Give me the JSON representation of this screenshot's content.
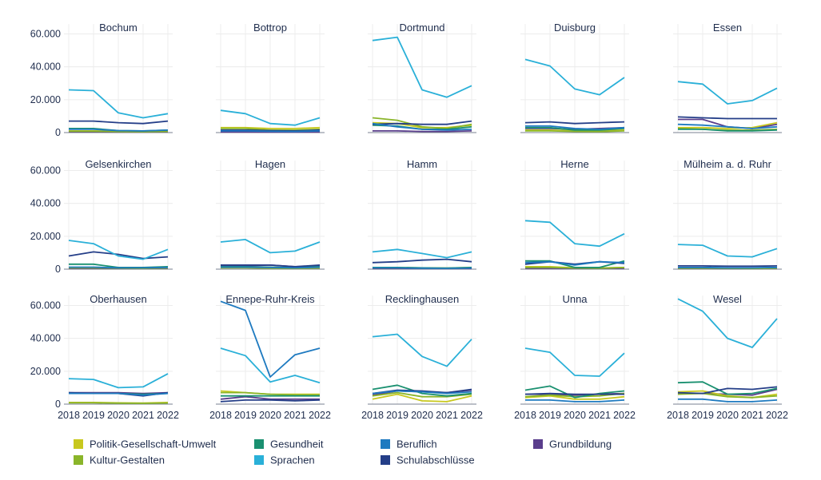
{
  "chart_data": {
    "type": "line",
    "years": [
      "2018",
      "2019",
      "2020",
      "2021",
      "2022"
    ],
    "y_ticks": [
      "0",
      "20.000",
      "40.000",
      "60.000"
    ],
    "ylim": [
      0,
      68000
    ],
    "grid": true,
    "legend_position": "bottom",
    "series_info": [
      {
        "key": "pgu",
        "name": "Politik-Gesellschaft-Umwelt",
        "color": "#c8c81e"
      },
      {
        "key": "kg",
        "name": "Kultur-Gestalten",
        "color": "#8ab52a"
      },
      {
        "key": "ges",
        "name": "Gesundheit",
        "color": "#1a9070"
      },
      {
        "key": "spr",
        "name": "Sprachen",
        "color": "#2ab0d8"
      },
      {
        "key": "ber",
        "name": "Beruflich",
        "color": "#1e7ac0"
      },
      {
        "key": "sch",
        "name": "Schulabschlüsse",
        "color": "#243e88"
      },
      {
        "key": "gb",
        "name": "Grundbildung",
        "color": "#5a3e8c"
      }
    ],
    "panels": [
      {
        "title": "Bochum",
        "series": {
          "pgu": [
            1000,
            1000,
            800,
            700,
            1000
          ],
          "kg": [
            800,
            800,
            600,
            500,
            700
          ],
          "ges": [
            2500,
            2500,
            1200,
            1000,
            1500
          ],
          "spr": [
            26000,
            25500,
            12000,
            9000,
            11500
          ],
          "ber": [
            2000,
            2000,
            1200,
            1000,
            1500
          ],
          "sch": [
            7000,
            7000,
            6000,
            5500,
            7000
          ],
          "gb": [
            500,
            500,
            400,
            400,
            500
          ]
        }
      },
      {
        "title": "Bottrop",
        "series": {
          "pgu": [
            3000,
            3000,
            2500,
            2500,
            3000
          ],
          "kg": [
            2500,
            2500,
            1500,
            1500,
            2000
          ],
          "ges": [
            1500,
            1500,
            1000,
            1000,
            1500
          ],
          "spr": [
            13500,
            11500,
            5500,
            4500,
            9000
          ],
          "ber": [
            1000,
            1000,
            800,
            700,
            1000
          ],
          "sch": [
            1500,
            1500,
            1200,
            1000,
            1500
          ],
          "gb": [
            400,
            400,
            300,
            300,
            400
          ]
        }
      },
      {
        "title": "Dortmund",
        "series": {
          "pgu": [
            6000,
            5500,
            3000,
            3000,
            4500
          ],
          "kg": [
            9000,
            7500,
            3500,
            2500,
            5000
          ],
          "ges": [
            4500,
            4000,
            2000,
            2000,
            3500
          ],
          "spr": [
            56000,
            58000,
            26000,
            21500,
            28500
          ],
          "ber": [
            5500,
            3500,
            2000,
            1500,
            2000
          ],
          "sch": [
            5000,
            5500,
            5000,
            5000,
            7000
          ],
          "gb": [
            1000,
            1000,
            700,
            700,
            1000
          ]
        }
      },
      {
        "title": "Duisburg",
        "series": {
          "pgu": [
            1500,
            1500,
            1000,
            1000,
            1500
          ],
          "kg": [
            1000,
            1000,
            700,
            600,
            1000
          ],
          "ges": [
            3000,
            3000,
            1500,
            1500,
            2500
          ],
          "spr": [
            44500,
            40500,
            26500,
            23000,
            33500
          ],
          "ber": [
            4000,
            4000,
            2500,
            2000,
            3000
          ],
          "sch": [
            6000,
            6500,
            5500,
            6000,
            6500
          ],
          "gb": [
            2500,
            2500,
            2000,
            2500,
            3000
          ]
        }
      },
      {
        "title": "Essen",
        "series": {
          "pgu": [
            3000,
            3000,
            2500,
            3000,
            6000
          ],
          "kg": [
            2500,
            2000,
            1500,
            1500,
            2000
          ],
          "ges": [
            2000,
            2000,
            1000,
            1000,
            1500
          ],
          "spr": [
            31000,
            29500,
            17500,
            19500,
            27000
          ],
          "ber": [
            5000,
            4500,
            3500,
            2500,
            3500
          ],
          "sch": [
            9500,
            9000,
            8500,
            8500,
            8500
          ],
          "gb": [
            8000,
            8000,
            3500,
            2500,
            5000
          ]
        }
      },
      {
        "title": "Gelsenkirchen",
        "series": {
          "pgu": [
            1000,
            1000,
            700,
            600,
            1000
          ],
          "kg": [
            800,
            800,
            600,
            500,
            700
          ],
          "ges": [
            3000,
            3000,
            1000,
            1000,
            1500
          ],
          "spr": [
            17500,
            15500,
            8000,
            6000,
            12000
          ],
          "ber": [
            1200,
            1200,
            800,
            800,
            1000
          ],
          "sch": [
            8000,
            10500,
            9000,
            6500,
            7500
          ],
          "gb": [
            500,
            500,
            400,
            400,
            500
          ]
        }
      },
      {
        "title": "Hagen",
        "series": {
          "pgu": [
            1000,
            1000,
            800,
            700,
            1000
          ],
          "kg": [
            800,
            800,
            600,
            500,
            700
          ],
          "ges": [
            1500,
            1500,
            1200,
            1000,
            1500
          ],
          "spr": [
            16500,
            18000,
            10000,
            11000,
            16500
          ],
          "ber": [
            1200,
            1200,
            1000,
            800,
            1200
          ],
          "sch": [
            2500,
            2500,
            2500,
            1500,
            2500
          ],
          "gb": [
            2000,
            2000,
            2500,
            1500,
            2000
          ]
        }
      },
      {
        "title": "Hamm",
        "series": {
          "pgu": [
            1000,
            1000,
            800,
            700,
            1000
          ],
          "kg": [
            800,
            800,
            600,
            500,
            700
          ],
          "ges": [
            1000,
            1000,
            800,
            700,
            1000
          ],
          "spr": [
            10500,
            12000,
            9500,
            7000,
            10500
          ],
          "ber": [
            800,
            800,
            600,
            500,
            700
          ],
          "sch": [
            4000,
            4500,
            5500,
            6000,
            4500
          ],
          "gb": [
            400,
            400,
            300,
            300,
            400
          ]
        }
      },
      {
        "title": "Herne",
        "series": {
          "pgu": [
            1500,
            1500,
            800,
            700,
            1000
          ],
          "kg": [
            1000,
            1000,
            700,
            600,
            1000
          ],
          "ges": [
            5000,
            5000,
            1000,
            1000,
            5000
          ],
          "spr": [
            29500,
            28500,
            15500,
            14000,
            21500
          ],
          "ber": [
            4000,
            4500,
            2500,
            4500,
            4000
          ],
          "sch": [
            3000,
            4500,
            3000,
            4500,
            3500
          ],
          "gb": [
            600,
            600,
            500,
            500,
            600
          ]
        }
      },
      {
        "title": "Mülheim a. d. Ruhr",
        "series": {
          "pgu": [
            800,
            800,
            600,
            500,
            700
          ],
          "kg": [
            600,
            600,
            500,
            400,
            600
          ],
          "ges": [
            1000,
            1000,
            800,
            800,
            1000
          ],
          "spr": [
            15000,
            14500,
            8000,
            7500,
            12500
          ],
          "ber": [
            1000,
            1000,
            800,
            800,
            1000
          ],
          "sch": [
            2000,
            2000,
            1800,
            1800,
            2000
          ],
          "gb": [
            400,
            400,
            300,
            300,
            400
          ]
        }
      },
      {
        "title": "Oberhausen",
        "series": {
          "pgu": [
            1000,
            1000,
            800,
            700,
            1000
          ],
          "kg": [
            800,
            800,
            600,
            500,
            700
          ],
          "ges": [
            6500,
            6500,
            6500,
            6000,
            6500
          ],
          "spr": [
            15500,
            15000,
            10000,
            10500,
            18500
          ],
          "ber": [
            6500,
            6500,
            6500,
            5500,
            6500
          ],
          "sch": [
            7000,
            6500,
            6500,
            5000,
            7000
          ],
          "gb": [
            7000,
            7000,
            7000,
            6500,
            7000
          ]
        }
      },
      {
        "title": "Ennepe-Ruhr-Kreis",
        "series": {
          "pgu": [
            8000,
            7000,
            6000,
            6000,
            6000
          ],
          "kg": [
            7000,
            7000,
            6000,
            5500,
            5500
          ],
          "ges": [
            5000,
            5000,
            5000,
            5000,
            5000
          ],
          "spr": [
            34000,
            29500,
            13500,
            17500,
            13000
          ],
          "ber": [
            62500,
            57000,
            16500,
            30000,
            34000
          ],
          "sch": [
            1500,
            2500,
            2500,
            2000,
            2500
          ],
          "gb": [
            3000,
            4500,
            3000,
            3000,
            3000
          ]
        }
      },
      {
        "title": "Recklinghausen",
        "series": {
          "pgu": [
            3000,
            6000,
            2000,
            1500,
            5000
          ],
          "kg": [
            5000,
            7000,
            4500,
            4500,
            6000
          ],
          "ges": [
            9000,
            11500,
            6500,
            5000,
            6500
          ],
          "spr": [
            41000,
            42500,
            29000,
            23000,
            39500
          ],
          "ber": [
            6500,
            8000,
            7500,
            6500,
            7500
          ],
          "sch": [
            6500,
            8500,
            8000,
            7000,
            9000
          ],
          "gb": [
            5500,
            8000,
            7500,
            7000,
            8500
          ]
        }
      },
      {
        "title": "Unna",
        "series": {
          "pgu": [
            4000,
            5000,
            3000,
            3000,
            4500
          ],
          "kg": [
            4500,
            5500,
            4500,
            5000,
            6500
          ],
          "ges": [
            8500,
            11000,
            4000,
            6500,
            8000
          ],
          "spr": [
            34000,
            31500,
            17500,
            17000,
            31000
          ],
          "ber": [
            2500,
            2500,
            1500,
            1500,
            2500
          ],
          "sch": [
            6000,
            6500,
            6000,
            6000,
            6000
          ],
          "gb": [
            6000,
            6000,
            5500,
            6000,
            6500
          ]
        }
      },
      {
        "title": "Wesel",
        "series": {
          "pgu": [
            7500,
            8000,
            5000,
            4000,
            6000
          ],
          "kg": [
            6000,
            6500,
            4500,
            4000,
            5000
          ],
          "ges": [
            13000,
            13500,
            6000,
            6500,
            9500
          ],
          "spr": [
            64000,
            56500,
            40000,
            34500,
            52000
          ],
          "ber": [
            3000,
            3000,
            1500,
            1500,
            2500
          ],
          "sch": [
            7000,
            6500,
            9500,
            9000,
            10500
          ],
          "gb": [
            6500,
            6500,
            6000,
            5500,
            9000
          ]
        }
      }
    ]
  }
}
